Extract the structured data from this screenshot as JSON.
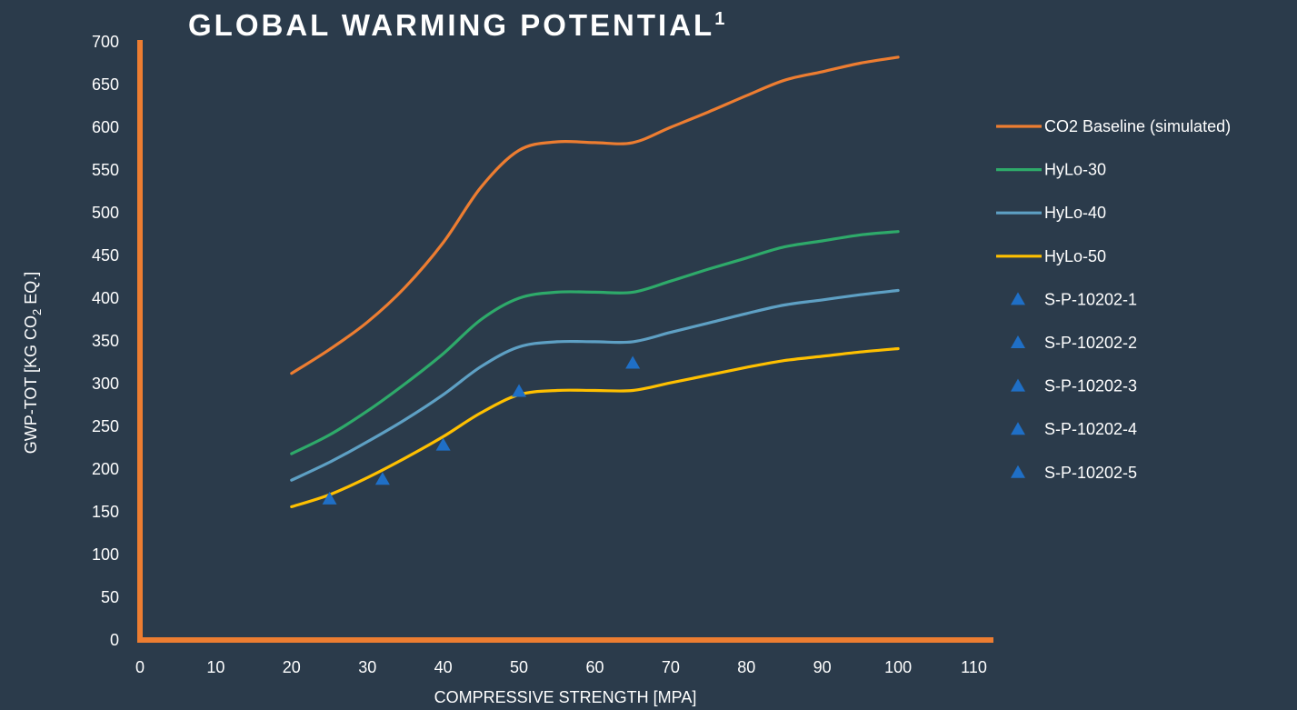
{
  "chart_data": {
    "type": "line",
    "title": "GLOBAL WARMING POTENTIAL",
    "title_superscript": "1",
    "xlabel": "COMPRESSIVE STRENGTH [MPA]",
    "ylabel_parts": [
      "GWP-TOT [KG CO",
      "2",
      " EQ.]"
    ],
    "xlim": [
      0,
      110
    ],
    "ylim": [
      0,
      700
    ],
    "x_ticks": [
      "0",
      "10",
      "20",
      "30",
      "40",
      "50",
      "60",
      "70",
      "80",
      "90",
      "100",
      "110"
    ],
    "y_ticks": [
      "0",
      "50",
      "100",
      "150",
      "200",
      "250",
      "300",
      "350",
      "400",
      "450",
      "500",
      "550",
      "600",
      "650",
      "700"
    ],
    "axis_color": "#ed7d31",
    "grid": false,
    "legend_position": "right",
    "series": [
      {
        "name": "CO2 Baseline (simulated)",
        "color": "#ed7d31",
        "x": [
          20,
          25,
          30,
          35,
          40,
          45,
          50,
          55,
          60,
          65,
          70,
          75,
          80,
          85,
          90,
          95,
          100
        ],
        "y": [
          312,
          340,
          372,
          413,
          465,
          530,
          573,
          583,
          582,
          582,
          600,
          618,
          637,
          655,
          665,
          675,
          682
        ]
      },
      {
        "name": "HyLo-30",
        "color": "#2eaa6a",
        "x": [
          20,
          25,
          30,
          35,
          40,
          45,
          50,
          55,
          60,
          65,
          70,
          75,
          80,
          85,
          90,
          95,
          100
        ],
        "y": [
          218,
          240,
          268,
          300,
          335,
          375,
          400,
          407,
          407,
          407,
          420,
          434,
          447,
          460,
          467,
          474,
          478
        ]
      },
      {
        "name": "HyLo-40",
        "color": "#5ea0c4",
        "x": [
          20,
          25,
          30,
          35,
          40,
          45,
          50,
          55,
          60,
          65,
          70,
          75,
          80,
          85,
          90,
          95,
          100
        ],
        "y": [
          187,
          208,
          232,
          258,
          287,
          320,
          343,
          349,
          349,
          349,
          360,
          371,
          382,
          392,
          398,
          404,
          409
        ]
      },
      {
        "name": "HyLo-50",
        "color": "#ffc000",
        "x": [
          20,
          25,
          30,
          35,
          40,
          45,
          50,
          55,
          60,
          65,
          70,
          75,
          80,
          85,
          90,
          95,
          100
        ],
        "y": [
          156,
          170,
          190,
          213,
          238,
          266,
          287,
          292,
          292,
          292,
          301,
          310,
          319,
          327,
          332,
          337,
          341
        ]
      }
    ],
    "points": [
      {
        "name": "S-P-10202-1",
        "x": 25,
        "y": 165,
        "color": "#1f6fc6"
      },
      {
        "name": "S-P-10202-2",
        "x": 32,
        "y": 188,
        "color": "#1f6fc6"
      },
      {
        "name": "S-P-10202-3",
        "x": 40,
        "y": 228,
        "color": "#1f6fc6"
      },
      {
        "name": "S-P-10202-4",
        "x": 50,
        "y": 291,
        "color": "#1f6fc6"
      },
      {
        "name": "S-P-10202-5",
        "x": 65,
        "y": 324,
        "color": "#1f6fc6"
      }
    ]
  }
}
